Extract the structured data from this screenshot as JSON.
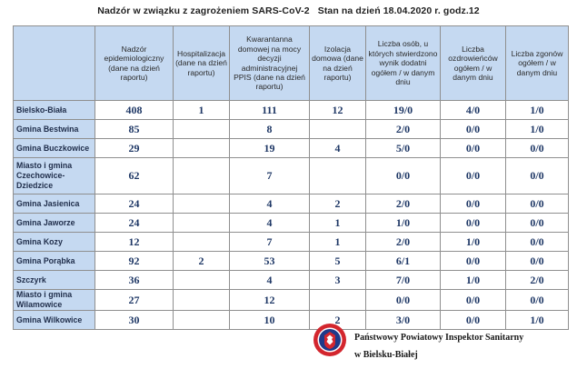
{
  "title": {
    "main": "Nadzór w związku z zagrożeniem SARS-CoV-2",
    "status": "Stan na dzień 18.04.2020 r. godz.12"
  },
  "table": {
    "headers": [
      "",
      "Nadzór epidemiologiczny (dane na dzień raportu)",
      "Hospitalizacja (dane na dzień raportu)",
      "Kwarantanna domowej na mocy decyzji administracyjnej PPIS (dane na dzień raportu)",
      "Izolacja domowa (dane na dzień raportu)",
      "Liczba osób, u których stwierdzono wynik dodatni ogółem / w danym dniu",
      "Liczba ozdrowieńców ogółem / w danym dniu",
      "Liczba zgonów ogółem / w danym dniu"
    ],
    "rows": [
      {
        "name": "Bielsko-Biała",
        "cells": [
          "408",
          "1",
          "111",
          "12",
          "19/0",
          "4/0",
          "1/0"
        ]
      },
      {
        "name": "Gmina Bestwina",
        "cells": [
          "85",
          "",
          "8",
          "",
          "2/0",
          "0/0",
          "1/0"
        ]
      },
      {
        "name": "Gmina Buczkowice",
        "cells": [
          "29",
          "",
          "19",
          "4",
          "5/0",
          "0/0",
          "0/0"
        ]
      },
      {
        "name": "Miasto i gmina Czechowice-Dziedzice",
        "cells": [
          "62",
          "",
          "7",
          "",
          "0/0",
          "0/0",
          "0/0"
        ]
      },
      {
        "name": "Gmina Jasienica",
        "cells": [
          "24",
          "",
          "4",
          "2",
          "2/0",
          "0/0",
          "0/0"
        ]
      },
      {
        "name": "Gmina Jaworze",
        "cells": [
          "24",
          "",
          "4",
          "1",
          "1/0",
          "0/0",
          "0/0"
        ]
      },
      {
        "name": "Gmina Kozy",
        "cells": [
          "12",
          "",
          "7",
          "1",
          "2/0",
          "1/0",
          "0/0"
        ]
      },
      {
        "name": "Gmina Porąbka",
        "cells": [
          "92",
          "2",
          "53",
          "5",
          "6/1",
          "0/0",
          "0/0"
        ]
      },
      {
        "name": "Szczyrk",
        "cells": [
          "36",
          "",
          "4",
          "3",
          "7/0",
          "1/0",
          "2/0"
        ]
      },
      {
        "name": "Miasto i gmina Wilamowice",
        "cells": [
          "27",
          "",
          "12",
          "",
          "0/0",
          "0/0",
          "0/0"
        ]
      },
      {
        "name": "Gmina Wilkowice",
        "cells": [
          "30",
          "",
          "10",
          "2",
          "3/0",
          "0/0",
          "1/0"
        ]
      }
    ]
  },
  "footer": {
    "line1": "Państwowy Powiatowy Inspektor Sanitarny",
    "line2": "w Bielsku-Białej",
    "logo_icon": "sanitary-inspection-emblem-icon"
  },
  "colors": {
    "header_bg": "#c5d9f1",
    "value_text": "#1f3866",
    "logo_ring": "#d3262e",
    "logo_center": "#1f3a8a"
  }
}
